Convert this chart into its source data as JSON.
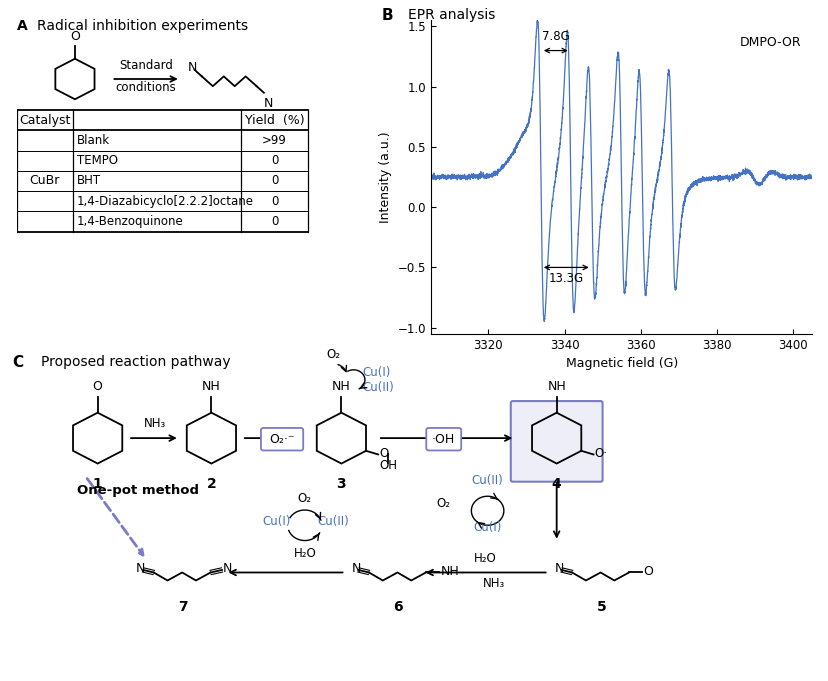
{
  "title_A": "A  Radical inhibition experiments",
  "title_B": "B  EPR analysis",
  "title_C": "C  Proposed reaction pathway",
  "table_catalyst_col": "Catalyst",
  "table_yield_col": "Yield  (%)",
  "table_rows": [
    {
      "additive": "Blank",
      "yield": ">99"
    },
    {
      "additive": "TEMPO",
      "yield": "0"
    },
    {
      "additive": "BHT",
      "yield": "0"
    },
    {
      "additive": "1,4-Diazabicyclo[2.2.2]octane",
      "yield": "0"
    },
    {
      "additive": "1,4-Benzoquinone",
      "yield": "0"
    }
  ],
  "table_catalyst_label": "CuBr",
  "epr_xlabel": "Magnetic field (G)",
  "epr_ylabel": "Intensity (a.u.)",
  "epr_xlim": [
    3305,
    3405
  ],
  "epr_ylim": [
    -1.05,
    1.55
  ],
  "epr_yticks": [
    -1.0,
    -0.5,
    0.0,
    0.5,
    1.0,
    1.5
  ],
  "epr_xticks": [
    3320,
    3340,
    3360,
    3380,
    3400
  ],
  "epr_label": "DMPO-OR",
  "epr_annotation1": "7.8G",
  "epr_annotation2": "13.3G",
  "blue_color": "#4472C4",
  "box_purple": "#7B7BC8",
  "box_fill": "#EEEEF8",
  "epr_line_color": "#4472C4",
  "standard_conditions": "Standard\nconditions"
}
